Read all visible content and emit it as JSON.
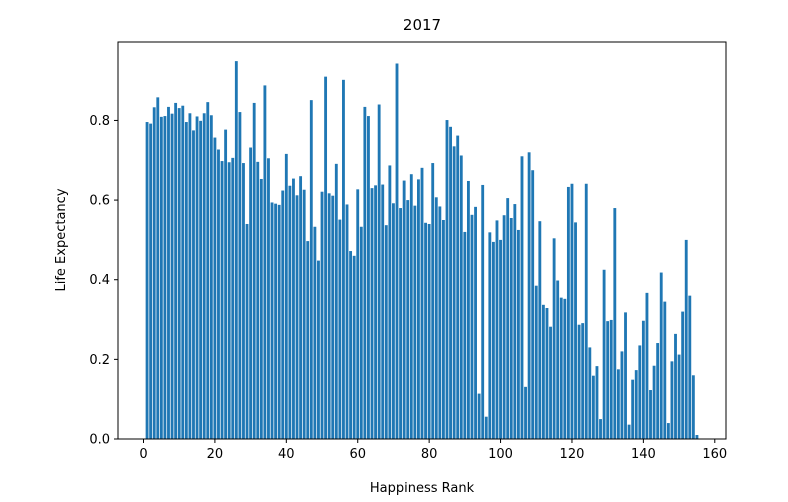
{
  "chart_data": {
    "type": "bar",
    "title": "2017",
    "xlabel": "Happiness Rank",
    "ylabel": "Life Expectancy",
    "color": "#1f77b4",
    "x": [
      1,
      2,
      3,
      4,
      5,
      6,
      7,
      8,
      9,
      10,
      11,
      12,
      13,
      14,
      15,
      16,
      17,
      18,
      19,
      20,
      21,
      22,
      23,
      24,
      25,
      26,
      27,
      28,
      29,
      30,
      31,
      32,
      33,
      34,
      35,
      36,
      37,
      38,
      39,
      40,
      41,
      42,
      43,
      44,
      45,
      46,
      47,
      48,
      49,
      50,
      51,
      52,
      53,
      54,
      55,
      56,
      57,
      58,
      59,
      60,
      61,
      62,
      63,
      64,
      65,
      66,
      67,
      68,
      69,
      70,
      71,
      72,
      73,
      74,
      75,
      76,
      77,
      78,
      79,
      80,
      81,
      82,
      83,
      84,
      85,
      86,
      87,
      88,
      89,
      90,
      91,
      92,
      93,
      94,
      95,
      96,
      97,
      98,
      99,
      100,
      101,
      102,
      103,
      104,
      105,
      106,
      107,
      108,
      109,
      110,
      111,
      112,
      113,
      114,
      115,
      116,
      117,
      118,
      119,
      120,
      121,
      122,
      123,
      124,
      125,
      126,
      127,
      128,
      129,
      130,
      131,
      132,
      133,
      134,
      135,
      136,
      137,
      138,
      139,
      140,
      141,
      142,
      143,
      144,
      145,
      146,
      147,
      148,
      149,
      150,
      151,
      152,
      153,
      154,
      155
    ],
    "values": [
      0.796,
      0.792,
      0.833,
      0.858,
      0.809,
      0.811,
      0.834,
      0.817,
      0.844,
      0.831,
      0.837,
      0.796,
      0.818,
      0.775,
      0.81,
      0.799,
      0.818,
      0.846,
      0.813,
      0.757,
      0.727,
      0.698,
      0.777,
      0.695,
      0.706,
      0.949,
      0.821,
      0.693,
      0.54,
      0.732,
      0.844,
      0.696,
      0.653,
      0.888,
      0.705,
      0.594,
      0.591,
      0.588,
      0.624,
      0.716,
      0.636,
      0.654,
      0.612,
      0.66,
      0.626,
      0.497,
      0.851,
      0.533,
      0.448,
      0.621,
      0.91,
      0.617,
      0.611,
      0.691,
      0.551,
      0.902,
      0.589,
      0.472,
      0.46,
      0.627,
      0.533,
      0.834,
      0.811,
      0.63,
      0.637,
      0.84,
      0.639,
      0.537,
      0.687,
      0.592,
      0.943,
      0.58,
      0.649,
      0.6,
      0.665,
      0.586,
      0.652,
      0.681,
      0.543,
      0.54,
      0.693,
      0.607,
      0.584,
      0.55,
      0.801,
      0.784,
      0.735,
      0.762,
      0.712,
      0.52,
      0.648,
      0.563,
      0.583,
      0.114,
      0.638,
      0.056,
      0.519,
      0.495,
      0.549,
      0.5,
      0.562,
      0.605,
      0.555,
      0.59,
      0.525,
      0.71,
      0.131,
      0.72,
      0.675,
      0.385,
      0.547,
      0.337,
      0.329,
      0.282,
      0.504,
      0.398,
      0.355,
      0.352,
      0.633,
      0.641,
      0.544,
      0.287,
      0.291,
      0.641,
      0.23,
      0.159,
      0.183,
      0.05,
      0.425,
      0.296,
      0.299,
      0.58,
      0.175,
      0.22,
      0.318,
      0.036,
      0.149,
      0.173,
      0.235,
      0.297,
      0.367,
      0.123,
      0.184,
      0.241,
      0.418,
      0.345,
      0.04,
      0.195,
      0.264,
      0.212,
      0.32,
      0.5,
      0.36,
      0.16,
      0.01
    ],
    "xlim": [
      -7.14,
      163.14
    ],
    "xticks": [
      0,
      20,
      40,
      60,
      80,
      100,
      120,
      140,
      160
    ],
    "ylim": [
      0,
      0.997
    ],
    "yticks": [
      {
        "value": 0,
        "label": "0.0"
      },
      0.2,
      0.4,
      0.6,
      0.8
    ]
  }
}
